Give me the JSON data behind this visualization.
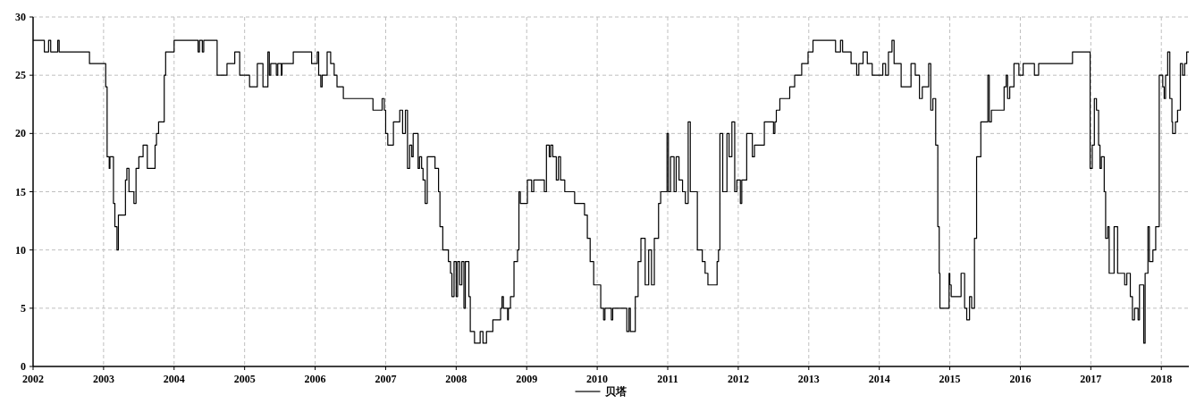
{
  "chart_data": {
    "type": "step",
    "xlim": [
      2002,
      2018.39
    ],
    "xticks": [
      2002,
      2003,
      2004,
      2005,
      2006,
      2007,
      2008,
      2009,
      2010,
      2011,
      2012,
      2013,
      2014,
      2015,
      2016,
      2017,
      2018
    ],
    "ylim": [
      0,
      30
    ],
    "yticks": [
      0,
      5,
      10,
      15,
      20,
      25,
      30
    ],
    "grid": true,
    "legend": "bottom",
    "x": [
      2002.0,
      2002.16,
      2002.22,
      2002.25,
      2002.35,
      2002.37,
      2002.8,
      2003.03,
      2003.05,
      2003.08,
      2003.09,
      2003.14,
      2003.16,
      2003.19,
      2003.21,
      2003.31,
      2003.33,
      2003.36,
      2003.43,
      2003.46,
      2003.5,
      2003.56,
      2003.62,
      2003.73,
      2003.75,
      2003.78,
      2003.86,
      2003.88,
      2004.0,
      2004.34,
      2004.36,
      2004.4,
      2004.42,
      2004.61,
      2004.75,
      2004.86,
      2004.93,
      2005.07,
      2005.18,
      2005.26,
      2005.33,
      2005.35,
      2005.37,
      2005.45,
      2005.47,
      2005.52,
      2005.53,
      2005.69,
      2005.95,
      2006.03,
      2006.05,
      2006.08,
      2006.1,
      2006.17,
      2006.22,
      2006.27,
      2006.31,
      2006.4,
      2006.82,
      2006.95,
      2006.98,
      2007.0,
      2007.03,
      2007.11,
      2007.2,
      2007.24,
      2007.28,
      2007.31,
      2007.34,
      2007.37,
      2007.39,
      2007.46,
      2007.48,
      2007.51,
      2007.53,
      2007.56,
      2007.59,
      2007.7,
      2007.75,
      2007.77,
      2007.81,
      2007.89,
      2007.92,
      2007.94,
      2007.97,
      2008.0,
      2008.02,
      2008.05,
      2008.08,
      2008.11,
      2008.13,
      2008.18,
      2008.2,
      2008.26,
      2008.34,
      2008.38,
      2008.43,
      2008.52,
      2008.63,
      2008.65,
      2008.67,
      2008.73,
      2008.74,
      2008.77,
      2008.82,
      2008.87,
      2008.89,
      2008.91,
      2009.01,
      2009.07,
      2009.1,
      2009.25,
      2009.28,
      2009.32,
      2009.34,
      2009.37,
      2009.42,
      2009.45,
      2009.48,
      2009.54,
      2009.68,
      2009.82,
      2009.86,
      2009.9,
      2009.95,
      2010.05,
      2010.09,
      2010.11,
      2010.2,
      2010.22,
      2010.42,
      2010.45,
      2010.47,
      2010.54,
      2010.58,
      2010.62,
      2010.68,
      2010.73,
      2010.77,
      2010.81,
      2010.87,
      2010.9,
      2010.99,
      2011.01,
      2011.04,
      2011.09,
      2011.12,
      2011.16,
      2011.21,
      2011.25,
      2011.29,
      2011.32,
      2011.42,
      2011.49,
      2011.53,
      2011.57,
      2011.7,
      2011.72,
      2011.74,
      2011.78,
      2011.84,
      2011.87,
      2011.91,
      2011.95,
      2011.98,
      2012.03,
      2012.05,
      2012.12,
      2012.2,
      2012.23,
      2012.31,
      2012.37,
      2012.5,
      2012.52,
      2012.54,
      2012.59,
      2012.73,
      2012.8,
      2012.9,
      2012.99,
      2013.06,
      2013.38,
      2013.45,
      2013.48,
      2013.6,
      2013.68,
      2013.71,
      2013.77,
      2013.83,
      2013.9,
      2014.05,
      2014.09,
      2014.13,
      2014.18,
      2014.21,
      2014.31,
      2014.45,
      2014.51,
      2014.57,
      2014.61,
      2014.7,
      2014.73,
      2014.76,
      2014.8,
      2014.83,
      2014.85,
      2014.86,
      2014.99,
      2015.0,
      2015.02,
      2015.16,
      2015.21,
      2015.24,
      2015.28,
      2015.31,
      2015.35,
      2015.38,
      2015.44,
      2015.54,
      2015.56,
      2015.59,
      2015.77,
      2015.8,
      2015.82,
      2015.85,
      2015.91,
      2015.98,
      2016.04,
      2016.2,
      2016.26,
      2016.74,
      2016.99,
      2017.02,
      2017.05,
      2017.08,
      2017.11,
      2017.13,
      2017.15,
      2017.19,
      2017.21,
      2017.24,
      2017.26,
      2017.33,
      2017.38,
      2017.48,
      2017.51,
      2017.56,
      2017.59,
      2017.62,
      2017.67,
      2017.69,
      2017.75,
      2017.77,
      2017.81,
      2017.83,
      2017.88,
      2017.92,
      2017.97,
      2018.02,
      2018.04,
      2018.06,
      2018.09,
      2018.12,
      2018.15,
      2018.16,
      2018.2,
      2018.23,
      2018.27,
      2018.3,
      2018.33,
      2018.36,
      2018.39
    ],
    "series": [
      {
        "name": "贝塔",
        "color": "#000000",
        "values": [
          28,
          27,
          28,
          27,
          28,
          27,
          26,
          24,
          18,
          17,
          18,
          14,
          12,
          10,
          13,
          16,
          17,
          15,
          14,
          17,
          18,
          19,
          17,
          19,
          20,
          21,
          25,
          27,
          28,
          27,
          28,
          27,
          28,
          25,
          26,
          27,
          25,
          24,
          26,
          24,
          27,
          25,
          26,
          25,
          26,
          25,
          26,
          27,
          26,
          27,
          25,
          24,
          25,
          27,
          26,
          25,
          24,
          23,
          22,
          23,
          22,
          20,
          19,
          21,
          22,
          20,
          22,
          17,
          19,
          18,
          20,
          17,
          18,
          17,
          16,
          14,
          18,
          17,
          15,
          12,
          10,
          9,
          8,
          6,
          9,
          6,
          9,
          7,
          9,
          5,
          9,
          6,
          3,
          2,
          3,
          2,
          3,
          4,
          5,
          6,
          5,
          4,
          5,
          6,
          9,
          10,
          15,
          14,
          16,
          15,
          16,
          15,
          19,
          18,
          19,
          18,
          16,
          18,
          16,
          15,
          14,
          13,
          11,
          9,
          7,
          5,
          4,
          5,
          4,
          5,
          3,
          5,
          3,
          6,
          9,
          11,
          7,
          10,
          7,
          11,
          14,
          15,
          20,
          15,
          18,
          15,
          18,
          16,
          15,
          14,
          21,
          15,
          10,
          9,
          8,
          7,
          9,
          10,
          20,
          15,
          20,
          18,
          21,
          15,
          16,
          14,
          16,
          20,
          18,
          19,
          19,
          21,
          20,
          21,
          22,
          23,
          24,
          25,
          26,
          27,
          28,
          27,
          28,
          27,
          26,
          25,
          26,
          27,
          26,
          25,
          26,
          25,
          27,
          28,
          26,
          24,
          26,
          25,
          23,
          24,
          26,
          22,
          23,
          19,
          12,
          8,
          5,
          8,
          7,
          6,
          8,
          5,
          4,
          6,
          5,
          11,
          18,
          21,
          25,
          21,
          22,
          24,
          25,
          23,
          24,
          26,
          25,
          26,
          25,
          26,
          27,
          17,
          19,
          23,
          22,
          19,
          17,
          18,
          15,
          11,
          12,
          8,
          12,
          8,
          7,
          8,
          6,
          4,
          5,
          4,
          7,
          2,
          8,
          12,
          9,
          10,
          12,
          25,
          24,
          23,
          25,
          27,
          23,
          21,
          20,
          21,
          22,
          26,
          25,
          26,
          27,
          27
        ]
      }
    ]
  }
}
